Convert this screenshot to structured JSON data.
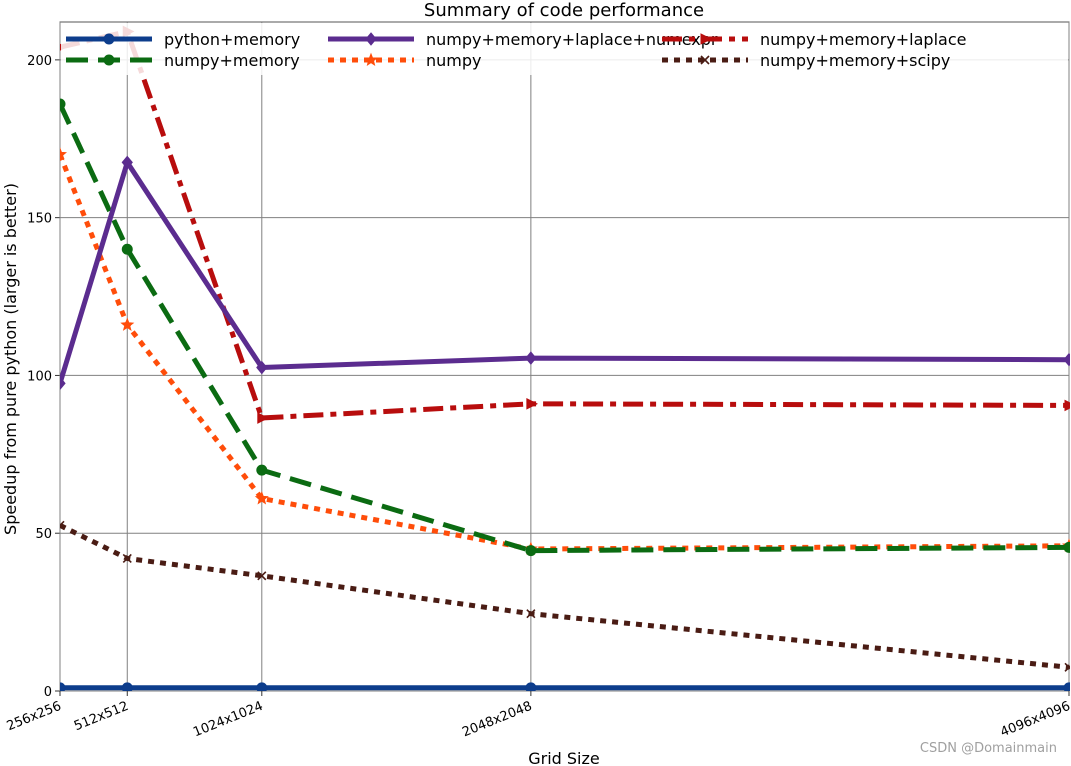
{
  "chart_data": {
    "type": "line",
    "title": "Summary of code performance",
    "xlabel": "Grid Size",
    "ylabel": "Speedup from pure python (larger is better)",
    "x": [
      256,
      512,
      1024,
      2048,
      4096
    ],
    "categories": [
      "256x256",
      "512x512",
      "1024x1024",
      "2048x2048",
      "4096x4096"
    ],
    "xlim": [
      256,
      4096
    ],
    "ylim": [
      0,
      212
    ],
    "yticks": [
      0,
      50,
      100,
      150,
      200
    ],
    "grid": true,
    "legend_position": "top",
    "series": [
      {
        "name": "python+memory",
        "values": [
          1,
          1,
          1,
          1,
          1
        ],
        "color": "#0d3d8c",
        "dash": "solid",
        "marker": "circle"
      },
      {
        "name": "numpy",
        "values": [
          170,
          116,
          61,
          45,
          46
        ],
        "color": "#ff4d0a",
        "dash": "dotted",
        "marker": "star"
      },
      {
        "name": "numpy+memory",
        "values": [
          186,
          140,
          70,
          44.5,
          45.5
        ],
        "color": "#0b6b12",
        "dash": "dashed",
        "marker": "circle"
      },
      {
        "name": "numpy+memory+laplace",
        "values": [
          204,
          209,
          86.5,
          91,
          90.5
        ],
        "color": "#b80d0d",
        "dash": "dashdot",
        "marker": "triangle"
      },
      {
        "name": "numpy+memory+laplace+numexpr",
        "values": [
          97.5,
          167.5,
          102.5,
          105.5,
          105
        ],
        "color": "#5b2c8f",
        "dash": "solid",
        "marker": "diamond"
      },
      {
        "name": "numpy+memory+scipy",
        "values": [
          52.5,
          42,
          36.5,
          24.5,
          7.5
        ],
        "color": "#4a1c14",
        "dash": "dotted",
        "marker": "x"
      }
    ]
  },
  "watermark": "CSDN @Domainmain"
}
